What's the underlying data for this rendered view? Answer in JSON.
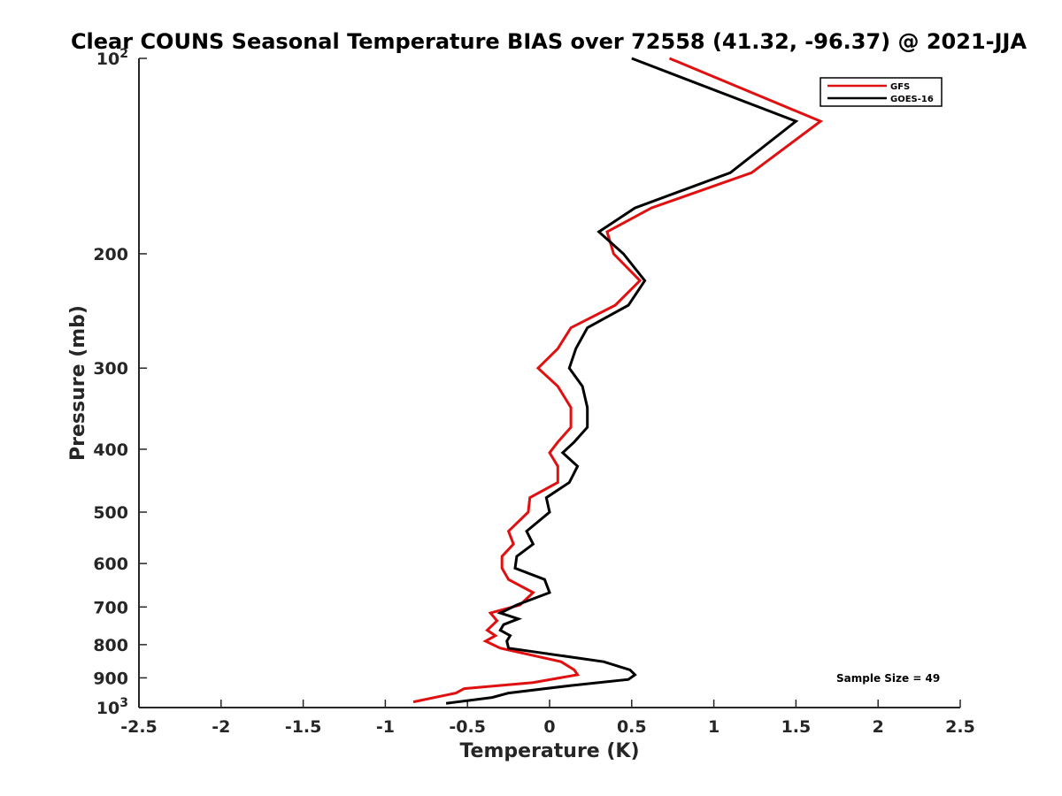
{
  "chart_data": {
    "type": "line",
    "title": "Clear COUNS Seasonal Temperature BIAS over 72558 (41.32, -96.37) @ 2021-JJA",
    "xlabel": "Temperature (K)",
    "ylabel": "Pressure (mb)",
    "xlim": [
      -2.5,
      2.5
    ],
    "ylim": [
      100,
      1000
    ],
    "y_scale": "log",
    "y_reversed": true,
    "x_ticks": [
      "-2.5",
      "-2",
      "-1.5",
      "-1",
      "-0.5",
      "0",
      "0.5",
      "1",
      "1.5",
      "2",
      "2.5"
    ],
    "y_ticks": [
      {
        "value": 100,
        "base": "10",
        "exp": "2"
      },
      {
        "value": 200,
        "base": "200",
        "exp": ""
      },
      {
        "value": 300,
        "base": "300",
        "exp": ""
      },
      {
        "value": 400,
        "base": "400",
        "exp": ""
      },
      {
        "value": 500,
        "base": "500",
        "exp": ""
      },
      {
        "value": 600,
        "base": "600",
        "exp": ""
      },
      {
        "value": 700,
        "base": "700",
        "exp": ""
      },
      {
        "value": 800,
        "base": "800",
        "exp": ""
      },
      {
        "value": 900,
        "base": "900",
        "exp": ""
      },
      {
        "value": 1000,
        "base": "10",
        "exp": "3"
      }
    ],
    "legend_position": "top-right",
    "annotation": "Sample Size = 49",
    "series": [
      {
        "name": "GFS",
        "color": "#e01010",
        "points": [
          [
            0.73,
            100
          ],
          [
            1.65,
            125
          ],
          [
            1.23,
            150
          ],
          [
            0.62,
            170
          ],
          [
            0.35,
            185
          ],
          [
            0.39,
            200
          ],
          [
            0.55,
            220
          ],
          [
            0.4,
            240
          ],
          [
            0.13,
            260
          ],
          [
            0.05,
            280
          ],
          [
            -0.07,
            300
          ],
          [
            0.05,
            320
          ],
          [
            0.13,
            345
          ],
          [
            0.13,
            370
          ],
          [
            0.05,
            390
          ],
          [
            0.0,
            405
          ],
          [
            0.05,
            425
          ],
          [
            0.05,
            450
          ],
          [
            -0.12,
            475
          ],
          [
            -0.13,
            500
          ],
          [
            -0.25,
            535
          ],
          [
            -0.22,
            560
          ],
          [
            -0.29,
            585
          ],
          [
            -0.29,
            610
          ],
          [
            -0.25,
            635
          ],
          [
            -0.1,
            665
          ],
          [
            -0.18,
            695
          ],
          [
            -0.36,
            715
          ],
          [
            -0.32,
            735
          ],
          [
            -0.38,
            760
          ],
          [
            -0.33,
            775
          ],
          [
            -0.39,
            790
          ],
          [
            -0.3,
            810
          ],
          [
            0.07,
            850
          ],
          [
            0.15,
            875
          ],
          [
            0.17,
            890
          ],
          [
            -0.1,
            915
          ],
          [
            -0.52,
            935
          ],
          [
            -0.57,
            950
          ],
          [
            -0.83,
            980
          ]
        ]
      },
      {
        "name": "GOES-16",
        "color": "#000000",
        "points": [
          [
            0.5,
            100
          ],
          [
            1.5,
            125
          ],
          [
            1.1,
            150
          ],
          [
            0.52,
            170
          ],
          [
            0.3,
            185
          ],
          [
            0.45,
            200
          ],
          [
            0.58,
            220
          ],
          [
            0.48,
            240
          ],
          [
            0.23,
            260
          ],
          [
            0.16,
            280
          ],
          [
            0.12,
            300
          ],
          [
            0.2,
            320
          ],
          [
            0.23,
            345
          ],
          [
            0.23,
            370
          ],
          [
            0.15,
            390
          ],
          [
            0.08,
            405
          ],
          [
            0.17,
            425
          ],
          [
            0.12,
            450
          ],
          [
            -0.02,
            475
          ],
          [
            0.0,
            500
          ],
          [
            -0.14,
            535
          ],
          [
            -0.1,
            560
          ],
          [
            -0.2,
            585
          ],
          [
            -0.21,
            610
          ],
          [
            -0.03,
            635
          ],
          [
            0.0,
            665
          ],
          [
            -0.2,
            695
          ],
          [
            -0.3,
            715
          ],
          [
            -0.19,
            730
          ],
          [
            -0.28,
            745
          ],
          [
            -0.3,
            760
          ],
          [
            -0.24,
            775
          ],
          [
            -0.26,
            790
          ],
          [
            -0.25,
            810
          ],
          [
            0.33,
            850
          ],
          [
            0.49,
            875
          ],
          [
            0.52,
            890
          ],
          [
            0.48,
            905
          ],
          [
            0.13,
            925
          ],
          [
            -0.25,
            950
          ],
          [
            -0.35,
            965
          ],
          [
            -0.63,
            985
          ]
        ]
      }
    ]
  }
}
